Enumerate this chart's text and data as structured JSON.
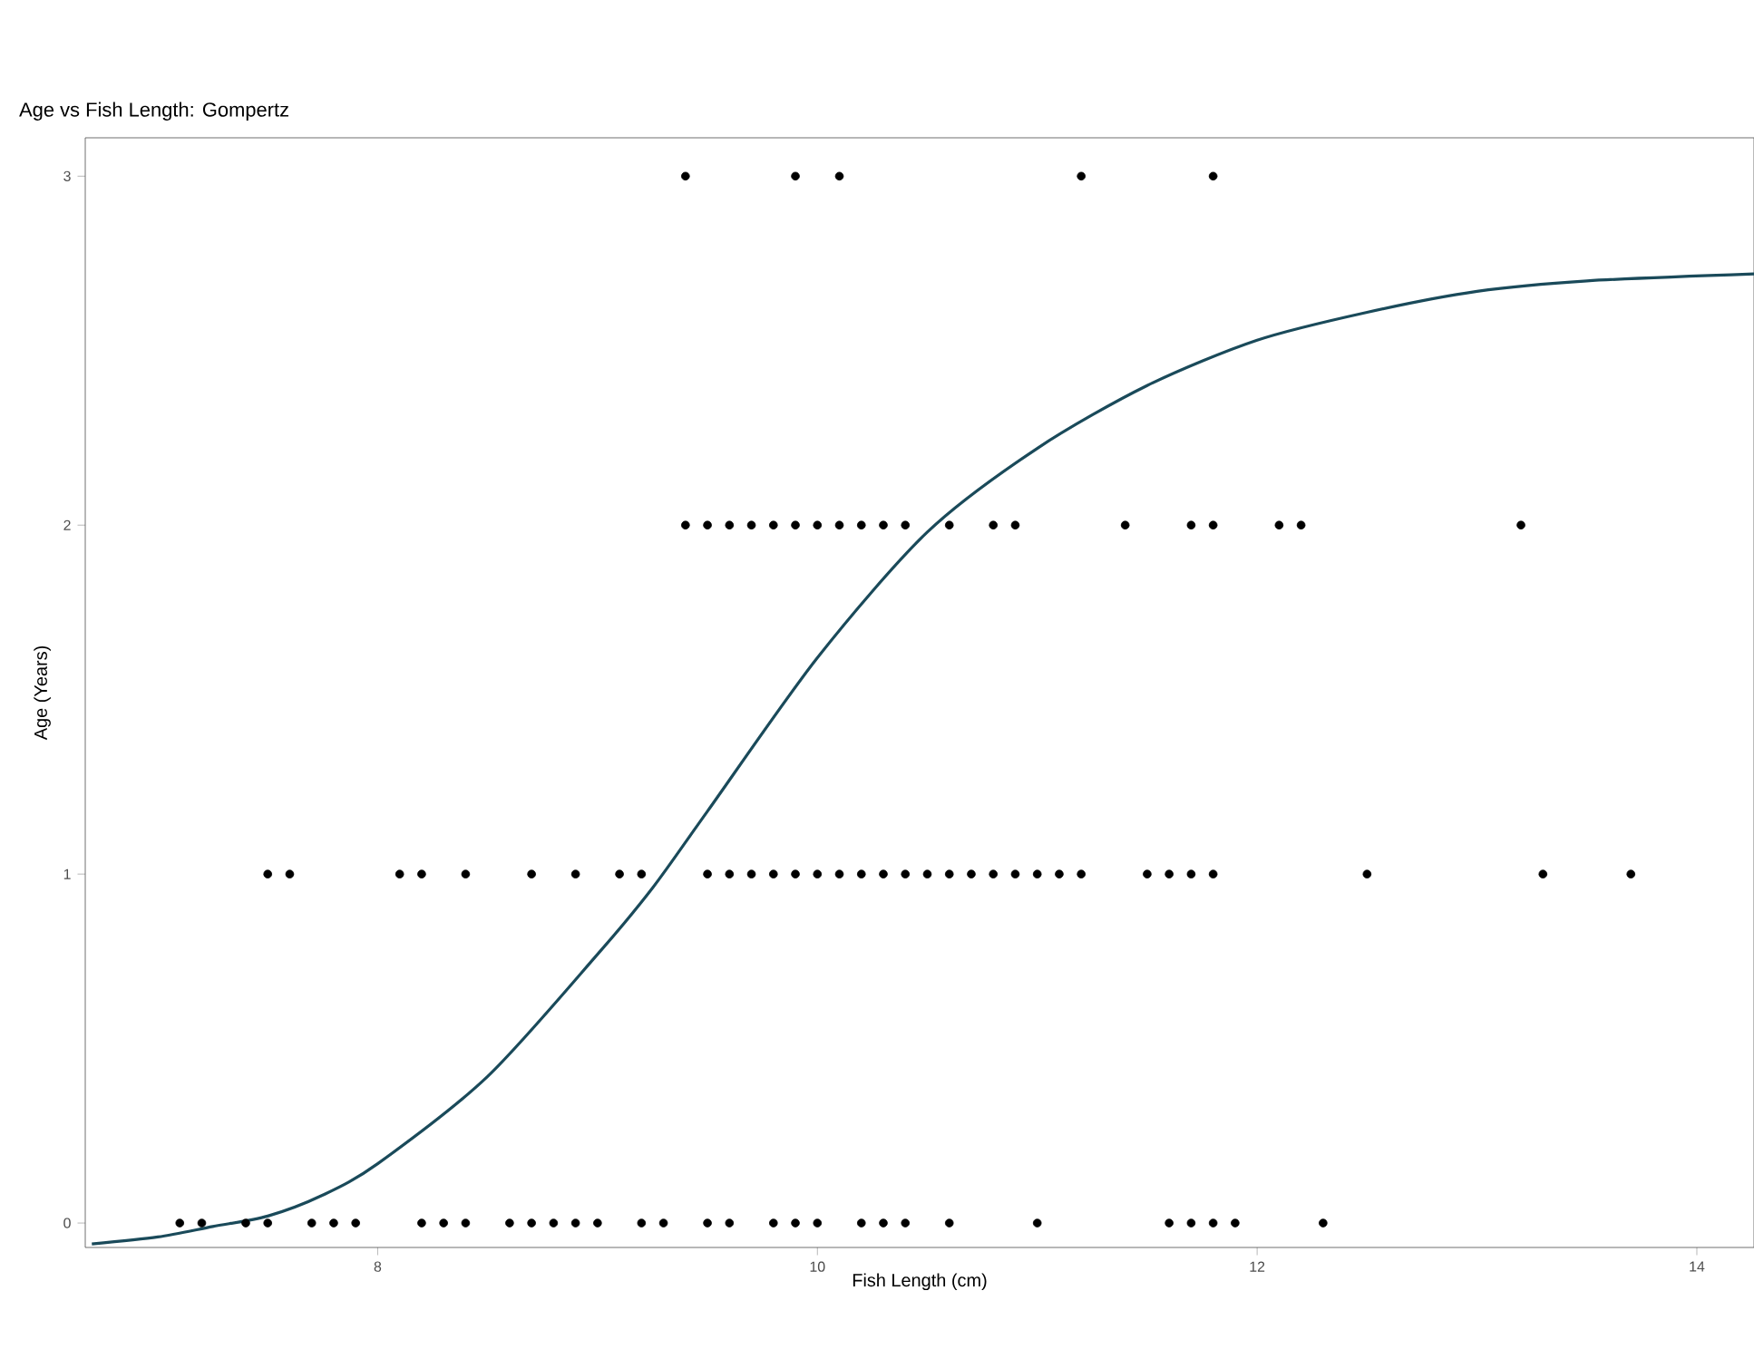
{
  "chart_data": {
    "type": "scatter",
    "title": "Age vs Fish Length: Gompertz",
    "xlabel": "Fish Length (cm)",
    "ylabel": "Age (Years)",
    "xlim": [
      6.67,
      14.26
    ],
    "ylim": [
      -0.07,
      3.11
    ],
    "xticks": [
      8,
      10,
      12,
      14
    ],
    "yticks": [
      0,
      1,
      2,
      3
    ],
    "grid": false,
    "series": [
      {
        "type": "scatter",
        "color": "#000000",
        "marker": "circle",
        "x": [
          7.1,
          7.2,
          7.4,
          7.5,
          7.7,
          7.8,
          7.9,
          8.2,
          8.3,
          8.4,
          8.6,
          8.7,
          8.8,
          8.9,
          9.0,
          9.2,
          9.3,
          9.5,
          9.6,
          9.8,
          9.9,
          10.0,
          10.2,
          10.3,
          10.4,
          10.6,
          11.0,
          11.6,
          11.7,
          11.8,
          11.9,
          12.3,
          7.5,
          7.6,
          8.1,
          8.2,
          8.4,
          8.7,
          8.9,
          9.1,
          9.2,
          9.5,
          9.6,
          9.7,
          9.8,
          9.9,
          10.0,
          10.1,
          10.2,
          10.3,
          10.4,
          10.5,
          10.6,
          10.7,
          10.8,
          10.9,
          11.0,
          11.1,
          11.2,
          11.5,
          11.6,
          11.7,
          11.8,
          12.5,
          13.3,
          13.7,
          9.4,
          9.5,
          9.6,
          9.7,
          9.8,
          9.9,
          10.0,
          10.1,
          10.2,
          10.3,
          10.4,
          10.6,
          10.8,
          10.9,
          11.4,
          11.7,
          11.8,
          12.1,
          12.2,
          13.2,
          9.4,
          9.9,
          10.1,
          11.2,
          11.8
        ],
        "values": [
          0,
          0,
          0,
          0,
          0,
          0,
          0,
          0,
          0,
          0,
          0,
          0,
          0,
          0,
          0,
          0,
          0,
          0,
          0,
          0,
          0,
          0,
          0,
          0,
          0,
          0,
          0,
          0,
          0,
          0,
          0,
          0,
          1,
          1,
          1,
          1,
          1,
          1,
          1,
          1,
          1,
          1,
          1,
          1,
          1,
          1,
          1,
          1,
          1,
          1,
          1,
          1,
          1,
          1,
          1,
          1,
          1,
          1,
          1,
          1,
          1,
          1,
          1,
          1,
          1,
          1,
          2,
          2,
          2,
          2,
          2,
          2,
          2,
          2,
          2,
          2,
          2,
          2,
          2,
          2,
          2,
          2,
          2,
          2,
          2,
          2,
          3,
          3,
          3,
          3,
          3
        ]
      },
      {
        "type": "line",
        "color": "#1a4a5a",
        "marker": "none",
        "line_style": "solid",
        "x": [
          6.7,
          7.0,
          7.25,
          7.5,
          7.75,
          8.0,
          8.5,
          9.0,
          9.25,
          9.5,
          10.0,
          10.5,
          11.0,
          11.5,
          12.0,
          12.5,
          13.0,
          13.5,
          14.26
        ],
        "values": [
          -0.06,
          -0.04,
          -0.01,
          0.02,
          0.08,
          0.17,
          0.42,
          0.77,
          0.96,
          1.18,
          1.62,
          1.98,
          2.22,
          2.4,
          2.53,
          2.61,
          2.67,
          2.7,
          2.72
        ]
      }
    ]
  }
}
